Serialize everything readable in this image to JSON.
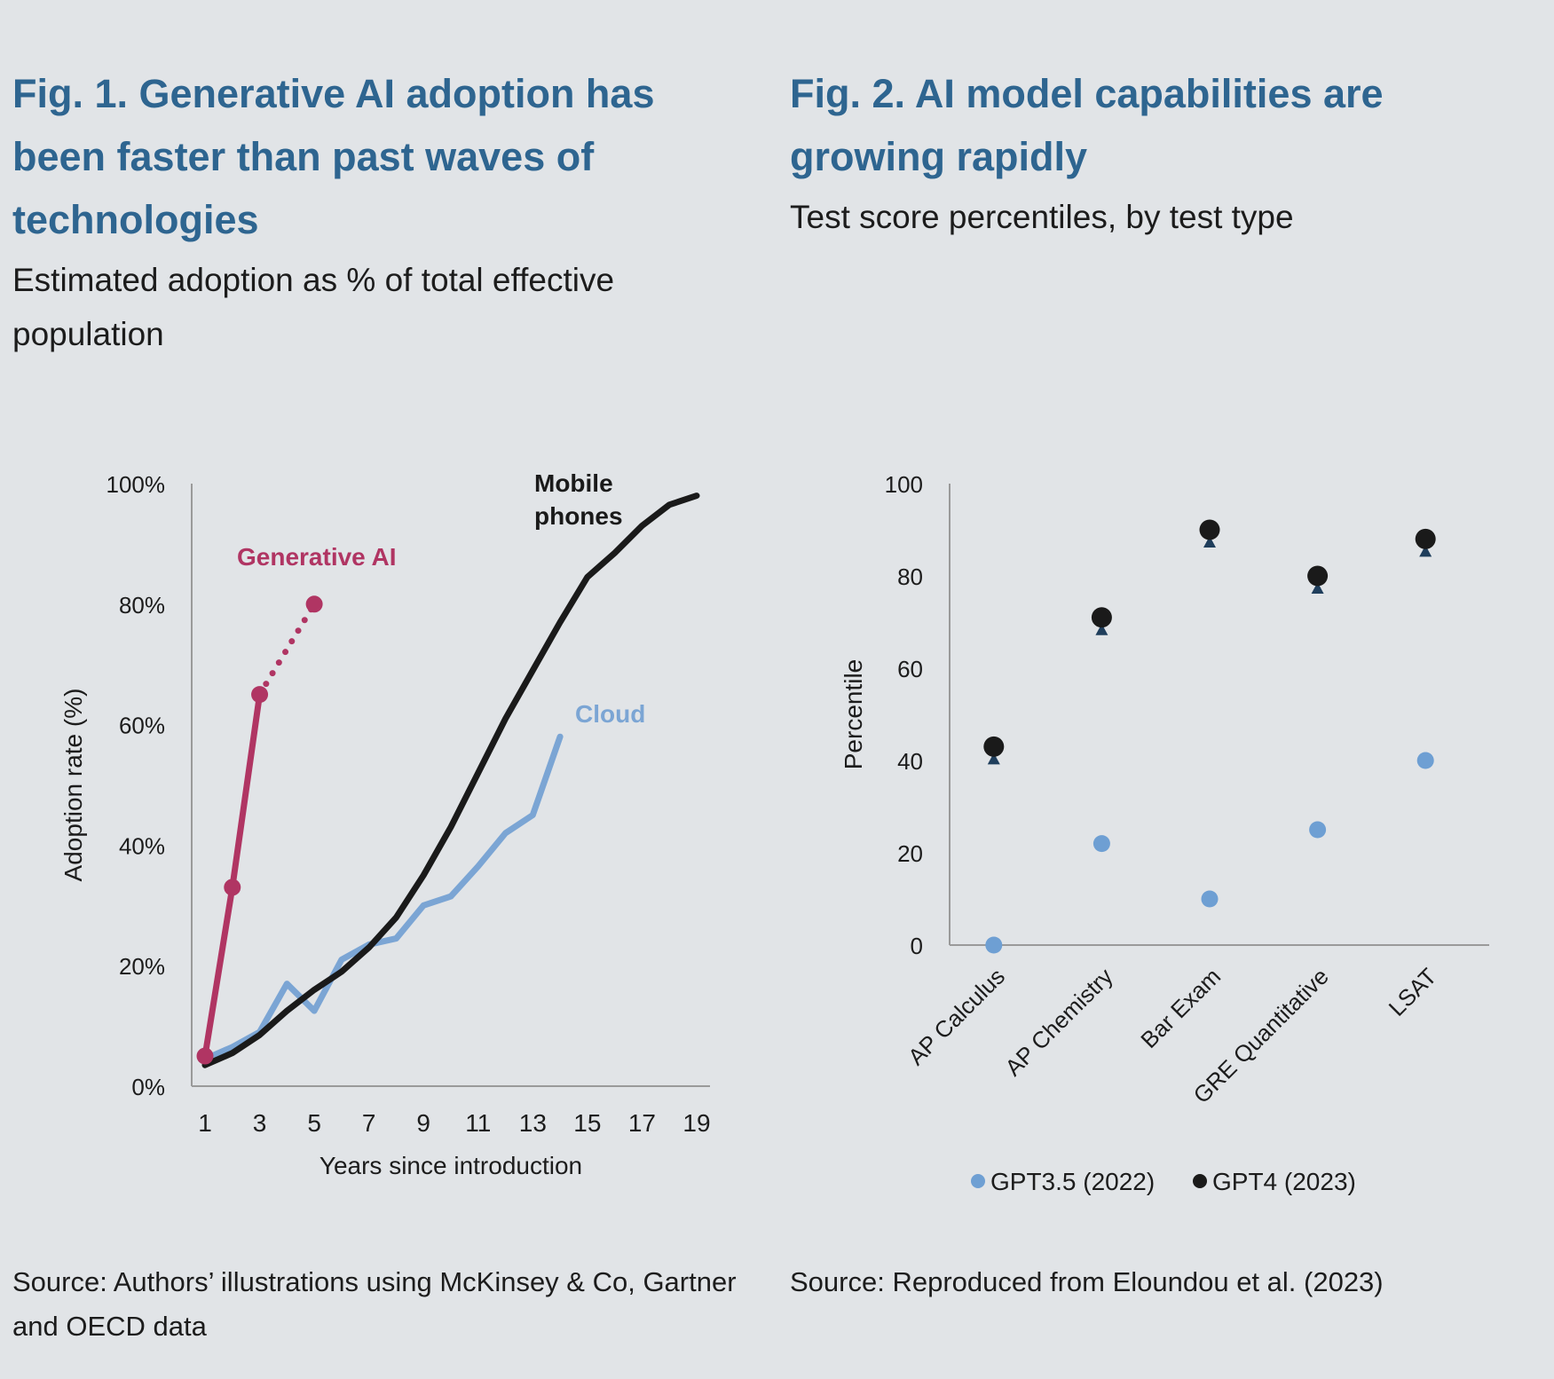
{
  "fig1": {
    "title": "Fig. 1. Generative AI adoption has been faster than past waves of technologies",
    "subtitle": "Estimated adoption as % of total effective population",
    "source": "Source: Authors’ illustrations using McKinsey & Co, Gartner and OECD data"
  },
  "fig2": {
    "title": "Fig. 2. AI model capabilities are growing rapidly",
    "subtitle": "Test score percentiles, by test type",
    "source": "Source: Reproduced from Eloundou et al. (2023)"
  },
  "chart_data": [
    {
      "type": "line",
      "xlabel": "Years since introduction",
      "ylabel": "Adoption rate (%)",
      "xlim": [
        0.5,
        19.5
      ],
      "ylim": [
        0,
        100
      ],
      "xticks": [
        1,
        3,
        5,
        7,
        9,
        11,
        13,
        15,
        17,
        19
      ],
      "yticks": [
        0,
        20,
        40,
        60,
        80,
        100
      ],
      "ytick_labels": [
        "0%",
        "20%",
        "40%",
        "60%",
        "80%",
        "100%"
      ],
      "grid": false,
      "series": [
        {
          "name": "Mobile phones",
          "color": "#1a1a1a",
          "points": [
            [
              1,
              3.5
            ],
            [
              2,
              5.5
            ],
            [
              3,
              8.5
            ],
            [
              4,
              12.5
            ],
            [
              5,
              16
            ],
            [
              6,
              19
            ],
            [
              7,
              23
            ],
            [
              8,
              28
            ],
            [
              9,
              35
            ],
            [
              10,
              43
            ],
            [
              11,
              52
            ],
            [
              12,
              61
            ],
            [
              13,
              69
            ],
            [
              14,
              77
            ],
            [
              15,
              84.5
            ],
            [
              16,
              88.5
            ],
            [
              17,
              93
            ],
            [
              18,
              96.5
            ],
            [
              19,
              98
            ]
          ]
        },
        {
          "name": "Cloud",
          "color": "#7ba5d4",
          "points": [
            [
              1,
              4.5
            ],
            [
              2,
              6.5
            ],
            [
              3,
              9
            ],
            [
              4,
              17
            ],
            [
              5,
              12.5
            ],
            [
              6,
              21
            ],
            [
              7,
              23.5
            ],
            [
              8,
              24.5
            ],
            [
              9,
              30
            ],
            [
              10,
              31.5
            ],
            [
              11,
              36.5
            ],
            [
              12,
              42
            ],
            [
              13,
              45
            ],
            [
              14,
              58
            ]
          ]
        },
        {
          "name": "Generative AI",
          "color": "#b03563",
          "points": [
            [
              1,
              5
            ],
            [
              2,
              33
            ],
            [
              3,
              65
            ]
          ],
          "projected_points": [
            [
              3,
              65
            ],
            [
              5,
              80
            ]
          ]
        }
      ]
    },
    {
      "type": "dumbbell",
      "ylabel": "Percentile",
      "ylim": [
        0,
        100
      ],
      "yticks": [
        0,
        20,
        40,
        60,
        80,
        100
      ],
      "grid": false,
      "legend_position": "bottom",
      "categories": [
        "AP Calculus",
        "AP Chemistry",
        "Bar Exam",
        "GRE Quantitative",
        "LSAT"
      ],
      "series": [
        {
          "name": "GPT3.5 (2022)",
          "color": "#6e9fd3",
          "values": [
            0,
            22,
            10,
            25,
            40
          ]
        },
        {
          "name": "GPT4 (2023)",
          "color": "#1a1a1a",
          "values": [
            43,
            71,
            90,
            80,
            88
          ]
        }
      ]
    }
  ]
}
